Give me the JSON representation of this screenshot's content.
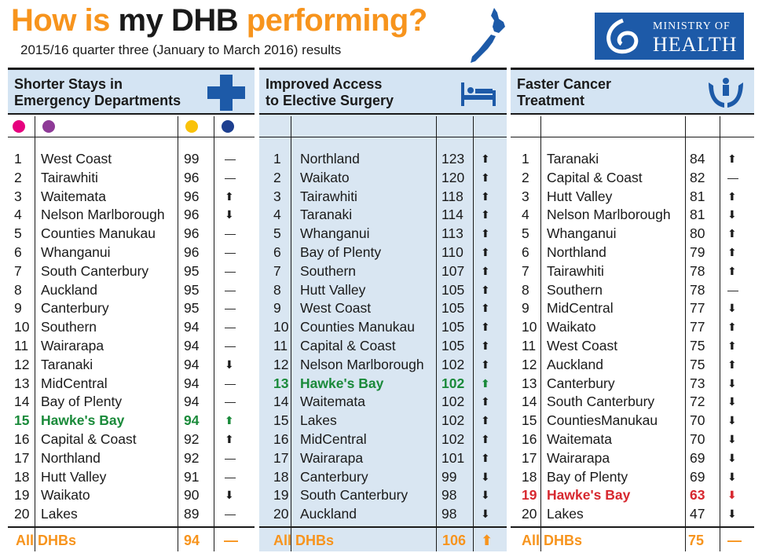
{
  "header": {
    "title_part1": "How is ",
    "title_part2": "my DHB",
    "title_part3": " performing?",
    "subtitle": "2015/16 quarter three (January to March 2016) results",
    "logo_line1": "MINISTRY OF",
    "logo_line2": "HEALTH"
  },
  "colors": {
    "accent_orange": "#f7941d",
    "header_blue": "#d4e4f3",
    "highlight_green": "#1a8a3a",
    "highlight_red": "#d7282f",
    "brand_blue": "#1d5aa8",
    "legend_dots": [
      "#e6007e",
      "#8e3a97",
      "#f9c20a",
      "#1d3f8f"
    ]
  },
  "panels": [
    {
      "title": "Shorter Stays in\nEmergency Departments",
      "icon": "cross-icon",
      "rows": [
        {
          "rank": "1",
          "name": "West Coast",
          "value": "99",
          "trend": "flat"
        },
        {
          "rank": "2",
          "name": "Tairawhiti",
          "value": "96",
          "trend": "flat"
        },
        {
          "rank": "3",
          "name": "Waitemata",
          "value": "96",
          "trend": "up"
        },
        {
          "rank": "4",
          "name": "Nelson Marlborough",
          "value": "96",
          "trend": "down"
        },
        {
          "rank": "5",
          "name": "Counties Manukau",
          "value": "96",
          "trend": "flat"
        },
        {
          "rank": "6",
          "name": "Whanganui",
          "value": "96",
          "trend": "flat"
        },
        {
          "rank": "7",
          "name": "South Canterbury",
          "value": "95",
          "trend": "flat"
        },
        {
          "rank": "8",
          "name": "Auckland",
          "value": "95",
          "trend": "flat"
        },
        {
          "rank": "9",
          "name": "Canterbury",
          "value": "95",
          "trend": "flat"
        },
        {
          "rank": "10",
          "name": "Southern",
          "value": "94",
          "trend": "flat"
        },
        {
          "rank": "11",
          "name": "Wairarapa",
          "value": "94",
          "trend": "flat"
        },
        {
          "rank": "12",
          "name": "Taranaki",
          "value": "94",
          "trend": "down"
        },
        {
          "rank": "13",
          "name": "MidCentral",
          "value": "94",
          "trend": "flat"
        },
        {
          "rank": "14",
          "name": "Bay of Plenty",
          "value": "94",
          "trend": "flat"
        },
        {
          "rank": "15",
          "name": "Hawke's Bay",
          "value": "94",
          "trend": "up",
          "highlight": "green"
        },
        {
          "rank": "16",
          "name": "Capital & Coast",
          "value": "92",
          "trend": "up"
        },
        {
          "rank": "17",
          "name": "Northland",
          "value": "92",
          "trend": "flat"
        },
        {
          "rank": "18",
          "name": "Hutt Valley",
          "value": "91",
          "trend": "flat"
        },
        {
          "rank": "19",
          "name": "Waikato",
          "value": "90",
          "trend": "down"
        },
        {
          "rank": "20",
          "name": "Lakes",
          "value": "89",
          "trend": "flat"
        }
      ],
      "footer": {
        "label": "All DHBs",
        "value": "94",
        "trend": "flat"
      }
    },
    {
      "title": "Improved Access\nto Elective Surgery",
      "icon": "hospital-bed-icon",
      "rows": [
        {
          "rank": "1",
          "name": "Northland",
          "value": "123",
          "trend": "up"
        },
        {
          "rank": "2",
          "name": "Waikato",
          "value": "120",
          "trend": "up"
        },
        {
          "rank": "3",
          "name": "Tairawhiti",
          "value": "118",
          "trend": "up"
        },
        {
          "rank": "4",
          "name": "Taranaki",
          "value": "114",
          "trend": "up"
        },
        {
          "rank": "5",
          "name": "Whanganui",
          "value": "113",
          "trend": "up"
        },
        {
          "rank": "6",
          "name": "Bay of Plenty",
          "value": "110",
          "trend": "up"
        },
        {
          "rank": "7",
          "name": "Southern",
          "value": "107",
          "trend": "up"
        },
        {
          "rank": "8",
          "name": "Hutt Valley",
          "value": "105",
          "trend": "up"
        },
        {
          "rank": "9",
          "name": "West Coast",
          "value": "105",
          "trend": "up"
        },
        {
          "rank": "10",
          "name": "Counties Manukau",
          "value": "105",
          "trend": "up"
        },
        {
          "rank": "11",
          "name": "Capital & Coast",
          "value": "105",
          "trend": "up"
        },
        {
          "rank": "12",
          "name": "Nelson Marlborough",
          "value": "102",
          "trend": "up"
        },
        {
          "rank": "13",
          "name": "Hawke's Bay",
          "value": "102",
          "trend": "up",
          "highlight": "green"
        },
        {
          "rank": "14",
          "name": "Waitemata",
          "value": "102",
          "trend": "up"
        },
        {
          "rank": "15",
          "name": "Lakes",
          "value": "102",
          "trend": "up"
        },
        {
          "rank": "16",
          "name": "MidCentral",
          "value": "102",
          "trend": "up"
        },
        {
          "rank": "17",
          "name": "Wairarapa",
          "value": "101",
          "trend": "up"
        },
        {
          "rank": "18",
          "name": "Canterbury",
          "value": "99",
          "trend": "down"
        },
        {
          "rank": "19",
          "name": "South Canterbury",
          "value": "98",
          "trend": "down"
        },
        {
          "rank": "20",
          "name": "Auckland",
          "value": "98",
          "trend": "down"
        }
      ],
      "footer": {
        "label": "All DHBs",
        "value": "106",
        "trend": "up"
      }
    },
    {
      "title": "Faster Cancer\nTreatment",
      "icon": "hands-care-icon",
      "rows": [
        {
          "rank": "1",
          "name": "Taranaki",
          "value": "84",
          "trend": "up"
        },
        {
          "rank": "2",
          "name": "Capital & Coast",
          "value": "82",
          "trend": "flat"
        },
        {
          "rank": "3",
          "name": "Hutt Valley",
          "value": "81",
          "trend": "up"
        },
        {
          "rank": "4",
          "name": "Nelson Marlborough",
          "value": "81",
          "trend": "down"
        },
        {
          "rank": "5",
          "name": "Whanganui",
          "value": "80",
          "trend": "up"
        },
        {
          "rank": "6",
          "name": "Northland",
          "value": "79",
          "trend": "up"
        },
        {
          "rank": "7",
          "name": "Tairawhiti",
          "value": "78",
          "trend": "up"
        },
        {
          "rank": "8",
          "name": "Southern",
          "value": "78",
          "trend": "flat"
        },
        {
          "rank": "9",
          "name": "MidCentral",
          "value": "77",
          "trend": "down"
        },
        {
          "rank": "10",
          "name": "Waikato",
          "value": "77",
          "trend": "up"
        },
        {
          "rank": "11",
          "name": "West Coast",
          "value": "75",
          "trend": "up"
        },
        {
          "rank": "12",
          "name": "Auckland",
          "value": "75",
          "trend": "up"
        },
        {
          "rank": "13",
          "name": "Canterbury",
          "value": "73",
          "trend": "down"
        },
        {
          "rank": "14",
          "name": "South Canterbury",
          "value": "72",
          "trend": "down"
        },
        {
          "rank": "15",
          "name": "CountiesManukau",
          "value": "70",
          "trend": "down"
        },
        {
          "rank": "16",
          "name": "Waitemata",
          "value": "70",
          "trend": "down"
        },
        {
          "rank": "17",
          "name": "Wairarapa",
          "value": "69",
          "trend": "down"
        },
        {
          "rank": "18",
          "name": "Bay of Plenty",
          "value": "69",
          "trend": "down"
        },
        {
          "rank": "19",
          "name": "Hawke's Bay",
          "value": "63",
          "trend": "down",
          "highlight": "red"
        },
        {
          "rank": "20",
          "name": "Lakes",
          "value": "47",
          "trend": "down"
        }
      ],
      "footer": {
        "label": "All DHBs",
        "value": "75",
        "trend": "flat"
      }
    }
  ]
}
